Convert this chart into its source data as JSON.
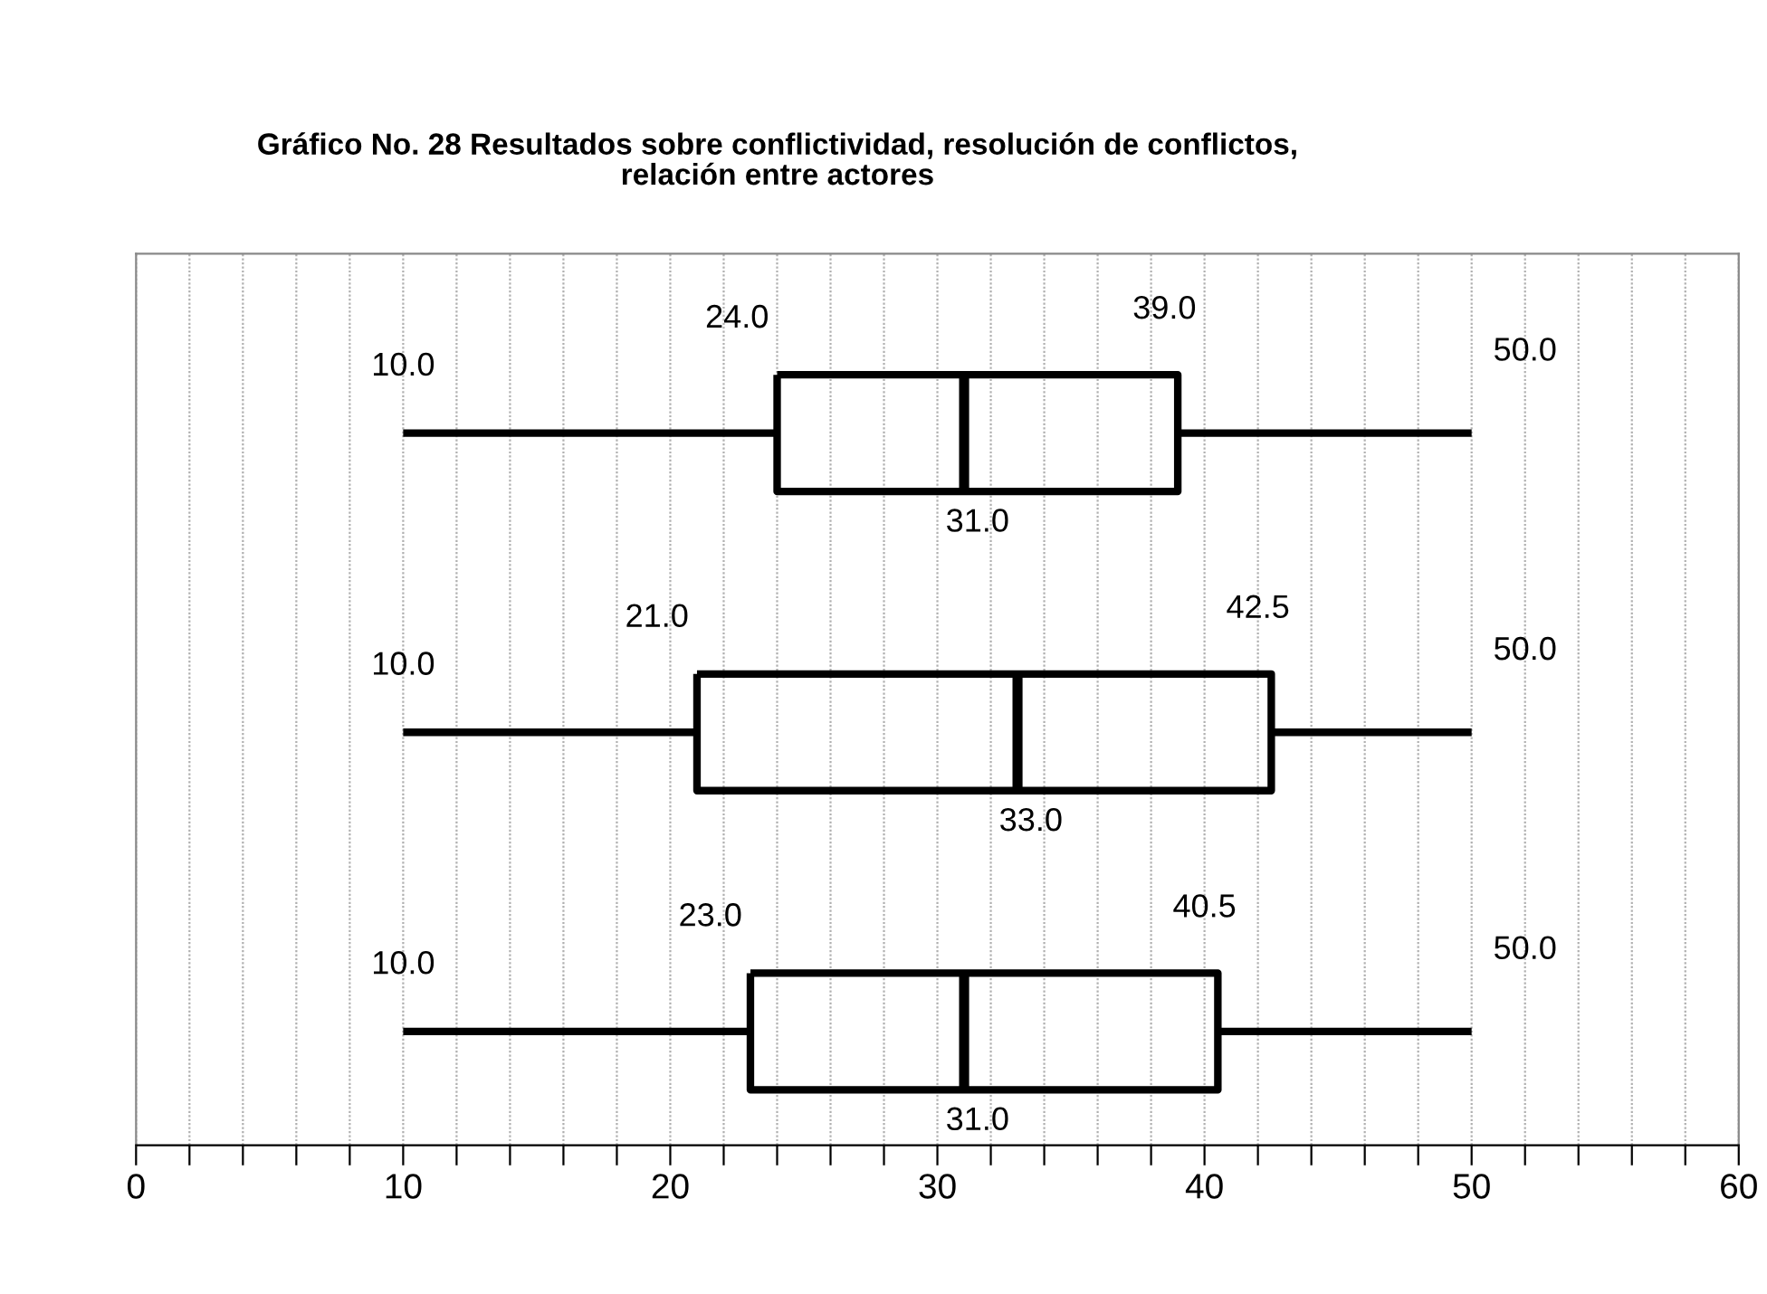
{
  "chart_data": {
    "type": "box",
    "orientation": "horizontal",
    "title": "Gráfico No. 28 Resultados sobre conflictividad, resolución de conflictos,\nrelación entre actores",
    "categories": [
      null,
      null,
      null
    ],
    "boxes": [
      {
        "low": 10,
        "q1": 24,
        "median": 31,
        "q3": 39,
        "high": 50
      },
      {
        "low": 10,
        "q1": 21,
        "median": 33,
        "q3": 42.5,
        "high": 50
      },
      {
        "low": 10,
        "q1": 23,
        "median": 31,
        "q3": 40.5,
        "high": 50
      }
    ],
    "value_labels": [
      [
        "10.0",
        "24.0",
        "31.0",
        "39.0",
        "50.0"
      ],
      [
        "10.0",
        "21.0",
        "33.0",
        "42.5",
        "50.0"
      ],
      [
        "10.0",
        "23.0",
        "31.0",
        "40.5",
        "50.0"
      ]
    ],
    "color": "#000000",
    "grid": "x",
    "tick_labels": "x",
    "xlim": [
      0,
      60
    ],
    "xticks": [
      0,
      {
        "value": 2,
        "label": null
      },
      {
        "value": 4,
        "label": null
      },
      {
        "value": 6,
        "label": null
      },
      {
        "value": 8,
        "label": null
      },
      10,
      {
        "value": 12,
        "label": null
      },
      {
        "value": 14,
        "label": null
      },
      {
        "value": 16,
        "label": null
      },
      {
        "value": 18,
        "label": null
      },
      20,
      {
        "value": 22,
        "label": null
      },
      {
        "value": 24,
        "label": null
      },
      {
        "value": 26,
        "label": null
      },
      {
        "value": 28,
        "label": null
      },
      30,
      {
        "value": 32,
        "label": null
      },
      {
        "value": 34,
        "label": null
      },
      {
        "value": 36,
        "label": null
      },
      {
        "value": 38,
        "label": null
      },
      40,
      {
        "value": 42,
        "label": null
      },
      {
        "value": 44,
        "label": null
      },
      {
        "value": 46,
        "label": null
      },
      {
        "value": 48,
        "label": null
      },
      50,
      {
        "value": 52,
        "label": null
      },
      {
        "value": 54,
        "label": null
      },
      {
        "value": 56,
        "label": null
      },
      {
        "value": 58,
        "label": null
      },
      60
    ]
  }
}
